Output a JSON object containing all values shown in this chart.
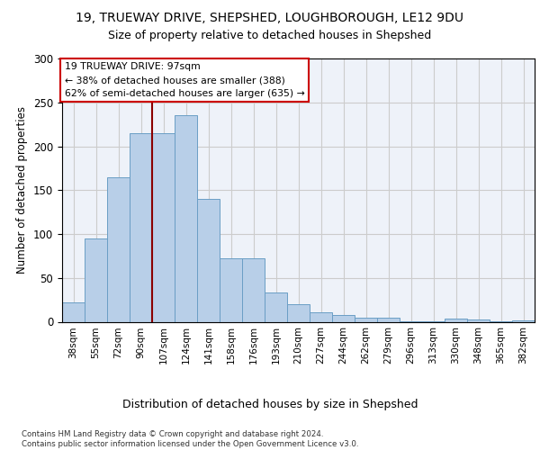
{
  "title_line1": "19, TRUEWAY DRIVE, SHEPSHED, LOUGHBOROUGH, LE12 9DU",
  "title_line2": "Size of property relative to detached houses in Shepshed",
  "xlabel": "Distribution of detached houses by size in Shepshed",
  "ylabel": "Number of detached properties",
  "bar_labels": [
    "38sqm",
    "55sqm",
    "72sqm",
    "90sqm",
    "107sqm",
    "124sqm",
    "141sqm",
    "158sqm",
    "176sqm",
    "193sqm",
    "210sqm",
    "227sqm",
    "244sqm",
    "262sqm",
    "279sqm",
    "296sqm",
    "313sqm",
    "330sqm",
    "348sqm",
    "365sqm",
    "382sqm"
  ],
  "bar_values": [
    22,
    95,
    165,
    215,
    215,
    235,
    140,
    72,
    72,
    33,
    20,
    11,
    8,
    5,
    5,
    1,
    1,
    4,
    3,
    1,
    2
  ],
  "bar_color": "#b8cfe8",
  "bar_edgecolor": "#6a9ec5",
  "vline_x": 3.5,
  "vline_color": "#8b0000",
  "annotation_text": "19 TRUEWAY DRIVE: 97sqm\n← 38% of detached houses are smaller (388)\n62% of semi-detached houses are larger (635) →",
  "annotation_box_edgecolor": "#cc0000",
  "annotation_box_facecolor": "#ffffff",
  "footnote": "Contains HM Land Registry data © Crown copyright and database right 2024.\nContains public sector information licensed under the Open Government Licence v3.0.",
  "ylim": [
    0,
    300
  ],
  "yticks": [
    0,
    50,
    100,
    150,
    200,
    250,
    300
  ],
  "grid_color": "#cccccc",
  "bg_color": "#eef2f9"
}
